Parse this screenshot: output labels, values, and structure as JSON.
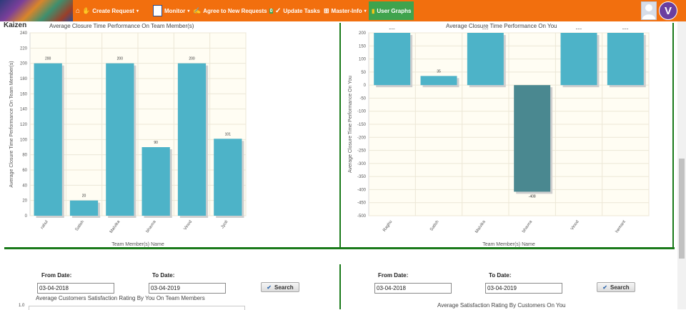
{
  "nav": {
    "items": [
      {
        "label": "Create Request",
        "caret": "▾"
      },
      {
        "label": "Monitor",
        "caret": "▾"
      },
      {
        "label": "Agree to New Requests",
        "count": "0"
      },
      {
        "label": "Update Tasks"
      },
      {
        "label": "Master-Info",
        "caret": "▾"
      },
      {
        "label": "User Graphs"
      }
    ],
    "user_initial": "V"
  },
  "brand": "Kaizen",
  "colors": {
    "bar": "#4db3c8",
    "bar_negative": "#4a8890",
    "nav_bg": "#f26f0e",
    "divider": "#1a7a1a"
  },
  "chart_data": [
    {
      "type": "bar",
      "title": "Average Closure Time Performance On Team Member(s)",
      "xlabel": "Team Member(s) Name",
      "ylabel": "Average Closure Time Performance On Team Member(s)",
      "categories": [
        "rahul",
        "Satish",
        "Malvika",
        "bhavna",
        "Vinod",
        "Jyoti"
      ],
      "values": [
        200,
        20,
        200,
        90,
        200,
        101
      ],
      "data_labels": [
        "200",
        "20",
        "200",
        "90",
        "200",
        "101"
      ],
      "ylim": [
        0,
        240
      ],
      "yticks": [
        0,
        20,
        40,
        60,
        80,
        100,
        120,
        140,
        160,
        180,
        200,
        220,
        240
      ]
    },
    {
      "type": "bar",
      "title": "Average Closure Time Performance On You",
      "xlabel": "Team Member(s) Name",
      "ylabel": "Average Closure Time Performance On You",
      "categories": [
        "Raghu",
        "Satish",
        "Malvika",
        "bhavna",
        "Vinod",
        "hemant"
      ],
      "values": [
        200,
        35,
        200,
        -408,
        200,
        200
      ],
      "data_labels": [
        "200",
        "35",
        "200",
        "-408",
        "200",
        "200"
      ],
      "ylim": [
        -500,
        200
      ],
      "yticks": [
        -500,
        -450,
        -400,
        -350,
        -300,
        -250,
        -200,
        -150,
        -100,
        -50,
        0,
        50,
        100,
        150,
        200
      ]
    }
  ],
  "left_form": {
    "from_label": "From Date:",
    "from_value": "03-04-2018",
    "to_label": "To Date:",
    "to_value": "03-04-2019",
    "search_label": "Search",
    "subtitle": "Average Customers Satisfaction Rating By You On Team Members",
    "axis_tick": "1.0"
  },
  "right_form": {
    "from_label": "From Date:",
    "from_value": "03-04-2018",
    "to_label": "To Date:",
    "to_value": "03-04-2019",
    "search_label": "Search",
    "subtitle": "Average Satisfaction Rating By Customers On You"
  }
}
